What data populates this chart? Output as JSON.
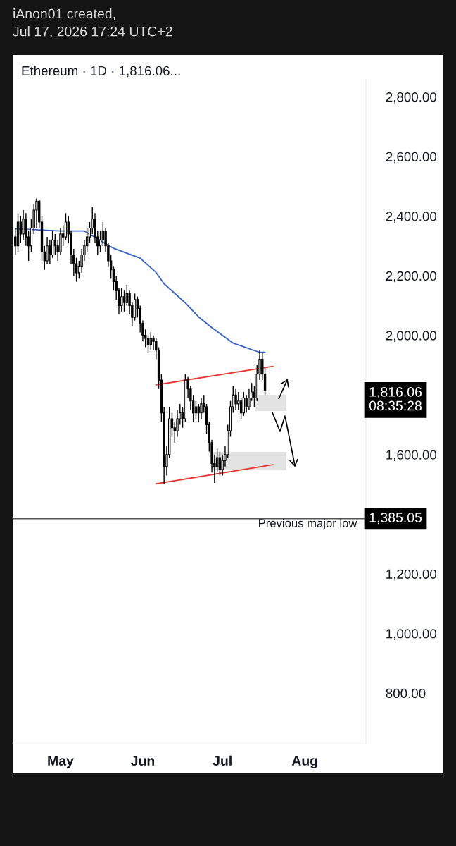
{
  "chart_data": {
    "type": "candlestick",
    "title": "Ethereum · 1D · 1,816.06...",
    "annotations": [
      "iAnon01 created,\nJul 17, 2026 17:24 UTC+2",
      "1,816.06",
      "08:35:28",
      "1,385.05"
    ],
    "color": "#000000",
    "x": [
      "2026-04-14",
      "2026-04-15",
      "2026-04-16",
      "2026-04-17",
      "2026-04-18",
      "2026-04-19",
      "2026-04-20",
      "2026-04-21",
      "2026-04-22",
      "2026-04-23",
      "2026-04-24",
      "2026-04-25",
      "2026-04-26",
      "2026-04-27",
      "2026-04-28",
      "2026-04-29",
      "2026-04-30",
      "2026-05-01",
      "2026-05-02",
      "2026-05-03",
      "2026-05-04",
      "2026-05-05",
      "2026-05-06",
      "2026-05-07",
      "2026-05-08",
      "2026-05-09",
      "2026-05-10",
      "2026-05-11",
      "2026-05-12",
      "2026-05-13",
      "2026-05-14",
      "2026-05-15",
      "2026-05-16",
      "2026-05-17",
      "2026-05-18",
      "2026-05-19",
      "2026-05-20",
      "2026-05-21",
      "2026-05-22",
      "2026-05-23",
      "2026-05-24",
      "2026-05-25",
      "2026-05-26",
      "2026-05-27",
      "2026-05-28",
      "2026-05-29",
      "2026-05-30",
      "2026-05-31",
      "2026-06-01",
      "2026-06-02",
      "2026-06-03",
      "2026-06-04",
      "2026-06-05",
      "2026-06-06",
      "2026-06-07",
      "2026-06-08",
      "2026-06-09",
      "2026-06-10",
      "2026-06-11",
      "2026-06-12",
      "2026-06-13",
      "2026-06-14",
      "2026-06-15",
      "2026-06-16",
      "2026-06-17",
      "2026-06-18",
      "2026-06-19",
      "2026-06-20",
      "2026-06-21",
      "2026-06-22",
      "2026-06-23",
      "2026-06-24",
      "2026-06-25",
      "2026-06-26",
      "2026-06-27",
      "2026-06-28",
      "2026-06-29",
      "2026-06-30",
      "2026-07-01",
      "2026-07-02",
      "2026-07-03",
      "2026-07-04",
      "2026-07-05",
      "2026-07-06",
      "2026-07-07",
      "2026-07-08",
      "2026-07-09",
      "2026-07-10",
      "2026-07-11",
      "2026-07-12",
      "2026-07-13",
      "2026-07-14",
      "2026-07-15",
      "2026-07-16",
      "2026-07-17"
    ],
    "ohlc": [
      [
        2330,
        2360,
        2270,
        2300
      ],
      [
        2300,
        2410,
        2280,
        2380
      ],
      [
        2380,
        2400,
        2310,
        2340
      ],
      [
        2340,
        2420,
        2320,
        2390
      ],
      [
        2390,
        2410,
        2300,
        2330
      ],
      [
        2330,
        2350,
        2250,
        2300
      ],
      [
        2300,
        2390,
        2280,
        2360
      ],
      [
        2360,
        2440,
        2340,
        2420
      ],
      [
        2420,
        2460,
        2360,
        2450
      ],
      [
        2450,
        2455,
        2360,
        2380
      ],
      [
        2380,
        2400,
        2250,
        2280
      ],
      [
        2280,
        2300,
        2220,
        2250
      ],
      [
        2250,
        2330,
        2240,
        2300
      ],
      [
        2300,
        2320,
        2240,
        2270
      ],
      [
        2270,
        2350,
        2260,
        2320
      ],
      [
        2320,
        2340,
        2270,
        2300
      ],
      [
        2300,
        2320,
        2250,
        2280
      ],
      [
        2280,
        2360,
        2270,
        2340
      ],
      [
        2340,
        2370,
        2300,
        2330
      ],
      [
        2330,
        2410,
        2320,
        2380
      ],
      [
        2380,
        2400,
        2310,
        2340
      ],
      [
        2340,
        2350,
        2240,
        2270
      ],
      [
        2270,
        2290,
        2200,
        2240
      ],
      [
        2240,
        2260,
        2180,
        2210
      ],
      [
        2210,
        2250,
        2190,
        2230
      ],
      [
        2230,
        2290,
        2210,
        2270
      ],
      [
        2270,
        2320,
        2250,
        2300
      ],
      [
        2300,
        2360,
        2280,
        2330
      ],
      [
        2330,
        2380,
        2310,
        2360
      ],
      [
        2360,
        2430,
        2340,
        2390
      ],
      [
        2390,
        2410,
        2310,
        2330
      ],
      [
        2330,
        2350,
        2270,
        2300
      ],
      [
        2300,
        2350,
        2280,
        2320
      ],
      [
        2320,
        2380,
        2300,
        2350
      ],
      [
        2350,
        2360,
        2280,
        2300
      ],
      [
        2300,
        2310,
        2230,
        2250
      ],
      [
        2250,
        2270,
        2190,
        2220
      ],
      [
        2220,
        2230,
        2150,
        2180
      ],
      [
        2180,
        2200,
        2120,
        2150
      ],
      [
        2150,
        2160,
        2070,
        2100
      ],
      [
        2100,
        2160,
        2080,
        2130
      ],
      [
        2130,
        2150,
        2080,
        2110
      ],
      [
        2110,
        2170,
        2100,
        2140
      ],
      [
        2140,
        2150,
        2070,
        2100
      ],
      [
        2100,
        2110,
        2030,
        2060
      ],
      [
        2060,
        2140,
        2050,
        2120
      ],
      [
        2120,
        2130,
        2060,
        2090
      ],
      [
        2090,
        2100,
        2010,
        2040
      ],
      [
        2040,
        2050,
        1980,
        2000
      ],
      [
        2000,
        2020,
        1960,
        1990
      ],
      [
        1990,
        2000,
        1940,
        1970
      ],
      [
        1970,
        2010,
        1950,
        1990
      ],
      [
        1990,
        2000,
        1950,
        1980
      ],
      [
        1980,
        1990,
        1920,
        1950
      ],
      [
        1950,
        1960,
        1820,
        1850
      ],
      [
        1850,
        1870,
        1710,
        1740
      ],
      [
        1740,
        1760,
        1500,
        1560
      ],
      [
        1560,
        1630,
        1530,
        1600
      ],
      [
        1600,
        1760,
        1590,
        1720
      ],
      [
        1720,
        1740,
        1660,
        1690
      ],
      [
        1690,
        1710,
        1640,
        1680
      ],
      [
        1680,
        1750,
        1660,
        1720
      ],
      [
        1720,
        1770,
        1700,
        1740
      ],
      [
        1740,
        1760,
        1690,
        1720
      ],
      [
        1720,
        1870,
        1710,
        1850
      ],
      [
        1850,
        1860,
        1790,
        1820
      ],
      [
        1820,
        1830,
        1750,
        1780
      ],
      [
        1780,
        1800,
        1710,
        1740
      ],
      [
        1740,
        1780,
        1720,
        1760
      ],
      [
        1760,
        1770,
        1710,
        1740
      ],
      [
        1740,
        1790,
        1720,
        1770
      ],
      [
        1770,
        1800,
        1740,
        1760
      ],
      [
        1760,
        1770,
        1670,
        1700
      ],
      [
        1700,
        1710,
        1610,
        1640
      ],
      [
        1640,
        1650,
        1540,
        1570
      ],
      [
        1570,
        1600,
        1505,
        1560
      ],
      [
        1560,
        1620,
        1540,
        1590
      ],
      [
        1590,
        1610,
        1530,
        1550
      ],
      [
        1550,
        1600,
        1530,
        1580
      ],
      [
        1580,
        1630,
        1560,
        1600
      ],
      [
        1600,
        1700,
        1590,
        1680
      ],
      [
        1680,
        1780,
        1660,
        1760
      ],
      [
        1760,
        1830,
        1740,
        1800
      ],
      [
        1800,
        1820,
        1750,
        1770
      ],
      [
        1770,
        1810,
        1750,
        1780
      ],
      [
        1780,
        1790,
        1720,
        1740
      ],
      [
        1740,
        1810,
        1730,
        1790
      ],
      [
        1790,
        1800,
        1740,
        1760
      ],
      [
        1760,
        1820,
        1750,
        1790
      ],
      [
        1790,
        1840,
        1780,
        1810
      ],
      [
        1810,
        1830,
        1760,
        1790
      ],
      [
        1790,
        1900,
        1780,
        1870
      ],
      [
        1870,
        1950,
        1850,
        1920
      ],
      [
        1920,
        1940,
        1850,
        1870
      ],
      [
        1870,
        1890,
        1800,
        1816.06
      ]
    ],
    "series": [
      {
        "type": "line",
        "color": "#3461c9",
        "x": [
          "2026-04-14",
          "2026-05-01",
          "2026-05-10",
          "2026-05-21",
          "2026-05-31",
          "2026-06-06",
          "2026-06-09",
          "2026-06-17",
          "2026-06-22",
          "2026-06-27",
          "2026-07-05",
          "2026-07-15",
          "2026-07-17"
        ],
        "values": [
          2358,
          2350,
          2350,
          2292,
          2259,
          2211,
          2173,
          2109,
          2062,
          2026,
          1974,
          1943,
          1943
        ]
      },
      {
        "type": "line",
        "color": "#e53935",
        "x": [
          "2026-06-06",
          "2026-07-20"
        ],
        "values": [
          1834,
          1896
        ]
      },
      {
        "type": "line",
        "color": "#e53935",
        "x": [
          "2026-06-06",
          "2026-07-20"
        ],
        "values": [
          1502,
          1566
        ]
      }
    ],
    "ref_lines": [
      {
        "axis": "y",
        "value": 1385.05,
        "label": "Previous major low",
        "color": "#555555"
      }
    ],
    "xlim": [
      "2026-04-13",
      "2026-08-24"
    ],
    "xticks": [
      {
        "value": "2026-05-01",
        "label": "May"
      },
      {
        "value": "2026-06-01",
        "label": "Jun"
      },
      {
        "value": "2026-07-01",
        "label": "Jul"
      },
      {
        "value": "2026-08-01",
        "label": "Aug"
      }
    ],
    "ylim": [
      630,
      2860
    ],
    "yticks": [
      {
        "value": 800,
        "label": "800.00"
      },
      {
        "value": 1000,
        "label": "1,000.00"
      },
      {
        "value": 1200,
        "label": "1,200.00"
      },
      {
        "value": 1600,
        "label": "1,600.00"
      },
      {
        "value": 2000,
        "label": "2,000.00"
      },
      {
        "value": 2200,
        "label": "2,200.00"
      },
      {
        "value": 2400,
        "label": "2,400.00"
      },
      {
        "value": 2600,
        "label": "2,600.00"
      },
      {
        "value": 2800,
        "label": "2,800.00"
      }
    ]
  }
}
